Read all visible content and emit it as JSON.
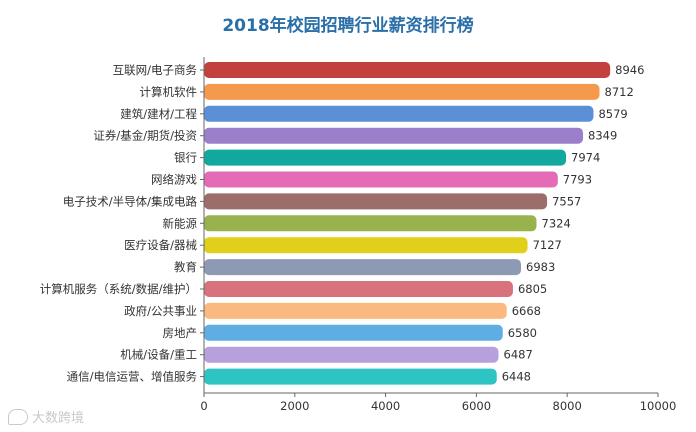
{
  "chart_data": {
    "type": "bar",
    "orientation": "horizontal",
    "title": "2018年校园招聘行业薪资排行榜",
    "categories": [
      "互联网/电子商务",
      "计算机软件",
      "建筑/建材/工程",
      "证券/基金/期货/投资",
      "银行",
      "网络游戏",
      "电子技术/半导体/集成电路",
      "新能源",
      "医疗设备/器械",
      "教育",
      "计算机服务（系统/数据/维护）",
      "政府/公共事业",
      "房地产",
      "机械/设备/重工",
      "通信/电信运营、增值服务"
    ],
    "values": [
      8946,
      8712,
      8579,
      8349,
      7974,
      7793,
      7557,
      7324,
      7127,
      6983,
      6805,
      6668,
      6580,
      6487,
      6448
    ],
    "colors": [
      "#c4403f",
      "#f59a4c",
      "#5b8fd6",
      "#9b7fcb",
      "#13a89e",
      "#e46bb5",
      "#9c6e6a",
      "#98b24d",
      "#e0cf1b",
      "#8e9ab3",
      "#d8727c",
      "#fbb97f",
      "#5faee3",
      "#b7a0de",
      "#2ec4c4"
    ],
    "xlim": [
      0,
      10000
    ],
    "xticks": [
      0,
      2000,
      4000,
      6000,
      8000,
      10000
    ],
    "xlabel": "",
    "ylabel": "",
    "grid": false,
    "legend": "none"
  },
  "watermark": "大数跨境"
}
